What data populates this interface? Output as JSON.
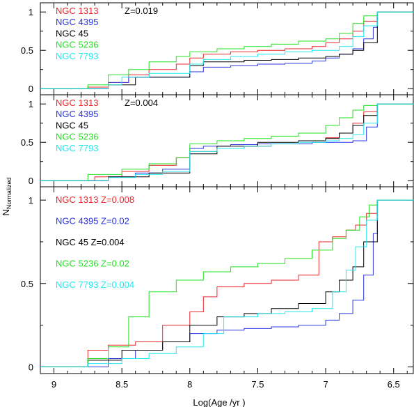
{
  "xlabel": "Log(Age /yr )",
  "ylabel_main": "N",
  "ylabel_sub": "Normalized",
  "xlim": [
    9.1,
    6.35
  ],
  "x_ticks": [
    "9",
    "8.5",
    "8",
    "7.5",
    "7",
    "6.5"
  ],
  "x_tick_values": [
    9,
    8.5,
    8,
    7.5,
    7,
    6.5
  ],
  "panels": [
    {
      "metallicity_label": "Z=0.019",
      "y_ticks": [
        "0",
        "0.5",
        "1"
      ],
      "legend": [
        "NGC 1313",
        "NGC 4395",
        "NGC 45",
        "NGC 5236",
        "NGC 7793"
      ]
    },
    {
      "metallicity_label": "Z=0.004",
      "y_ticks": [
        "0",
        "0.5",
        "1"
      ],
      "legend": [
        "NGC 1313",
        "NGC 4395",
        "NGC 45",
        "NGC 5236",
        "NGC 7793"
      ]
    },
    {
      "metallicity_label": "",
      "y_ticks": [
        "0",
        "0.5",
        "1"
      ],
      "legend": [
        "NGC 1313 Z=0.008",
        "NGC 4395 Z=0.02",
        "NGC 45 Z=0.004",
        "NGC 5236 Z=0.02",
        "NGC 7793 Z=0.004"
      ]
    }
  ],
  "colors": {
    "NGC 1313": "#e8262a",
    "NGC 4395": "#2a35e0",
    "NGC 45": "#000000",
    "NGC 5236": "#22e022",
    "NGC 7793": "#22e8f0"
  },
  "chart_data": [
    {
      "type": "line",
      "step": true,
      "panel": "top",
      "title": "Z=0.019",
      "ylim": [
        -0.08,
        1.12
      ],
      "series": [
        {
          "name": "NGC 1313",
          "x": [
            9.1,
            8.75,
            8.6,
            8.45,
            8.3,
            8.1,
            8.0,
            7.9,
            7.7,
            7.5,
            7.3,
            7.1,
            7.0,
            6.9,
            6.8,
            6.72,
            6.62,
            6.35
          ],
          "y": [
            0.0,
            0.02,
            0.08,
            0.18,
            0.25,
            0.32,
            0.4,
            0.45,
            0.48,
            0.5,
            0.52,
            0.55,
            0.6,
            0.65,
            0.75,
            0.88,
            1.0,
            1.0
          ]
        },
        {
          "name": "NGC 4395",
          "x": [
            9.1,
            8.6,
            8.45,
            8.0,
            7.9,
            7.7,
            7.5,
            7.3,
            7.1,
            7.0,
            6.9,
            6.8,
            6.72,
            6.65,
            6.62,
            6.35
          ],
          "y": [
            0.0,
            0.08,
            0.15,
            0.22,
            0.28,
            0.3,
            0.32,
            0.33,
            0.36,
            0.4,
            0.45,
            0.52,
            0.65,
            0.8,
            1.0,
            1.0
          ]
        },
        {
          "name": "NGC 45",
          "x": [
            9.1,
            8.6,
            8.4,
            8.0,
            7.9,
            7.6,
            7.4,
            7.2,
            7.0,
            6.9,
            6.8,
            6.72,
            6.62,
            6.35
          ],
          "y": [
            0.0,
            0.05,
            0.15,
            0.3,
            0.35,
            0.37,
            0.38,
            0.4,
            0.42,
            0.45,
            0.5,
            0.6,
            1.0,
            1.0
          ]
        },
        {
          "name": "NGC 5236",
          "x": [
            9.1,
            8.75,
            8.6,
            8.45,
            8.3,
            8.1,
            8.0,
            7.8,
            7.6,
            7.4,
            7.2,
            7.0,
            6.9,
            6.8,
            6.72,
            6.62,
            6.35
          ],
          "y": [
            0.0,
            0.05,
            0.18,
            0.25,
            0.35,
            0.42,
            0.48,
            0.52,
            0.55,
            0.58,
            0.62,
            0.65,
            0.72,
            0.85,
            0.95,
            1.0,
            1.0
          ]
        },
        {
          "name": "NGC 7793",
          "x": [
            9.1,
            8.6,
            8.5,
            8.3,
            8.0,
            7.9,
            7.7,
            7.5,
            7.3,
            7.1,
            6.9,
            6.8,
            6.72,
            6.62,
            6.35
          ],
          "y": [
            0.0,
            0.05,
            0.15,
            0.2,
            0.32,
            0.38,
            0.42,
            0.45,
            0.48,
            0.5,
            0.55,
            0.68,
            0.82,
            1.0,
            1.0
          ]
        }
      ]
    },
    {
      "type": "line",
      "step": true,
      "panel": "middle",
      "title": "Z=0.004",
      "ylim": [
        -0.08,
        1.12
      ],
      "series": [
        {
          "name": "NGC 1313",
          "x": [
            9.1,
            8.7,
            8.5,
            8.3,
            8.1,
            8.0,
            7.8,
            7.6,
            7.4,
            7.2,
            7.0,
            6.9,
            6.8,
            6.72,
            6.62,
            6.35
          ],
          "y": [
            0.0,
            0.05,
            0.12,
            0.2,
            0.3,
            0.38,
            0.42,
            0.45,
            0.48,
            0.52,
            0.56,
            0.62,
            0.75,
            0.9,
            1.0,
            1.0
          ]
        },
        {
          "name": "NGC 4395",
          "x": [
            9.1,
            8.6,
            8.4,
            8.2,
            8.0,
            7.9,
            7.7,
            7.5,
            7.3,
            7.1,
            6.9,
            6.8,
            6.7,
            6.62,
            6.35
          ],
          "y": [
            0.0,
            0.05,
            0.1,
            0.15,
            0.42,
            0.45,
            0.47,
            0.48,
            0.48,
            0.5,
            0.5,
            0.52,
            0.7,
            1.0,
            1.0
          ]
        },
        {
          "name": "NGC 45",
          "x": [
            9.1,
            8.6,
            8.3,
            8.0,
            7.8,
            7.5,
            7.2,
            7.0,
            6.9,
            6.8,
            6.72,
            6.62,
            6.35
          ],
          "y": [
            0.0,
            0.05,
            0.1,
            0.35,
            0.45,
            0.5,
            0.52,
            0.55,
            0.62,
            0.72,
            0.85,
            1.0,
            1.0
          ]
        },
        {
          "name": "NGC 5236",
          "x": [
            9.1,
            8.75,
            8.5,
            8.3,
            8.1,
            8.0,
            7.8,
            7.6,
            7.4,
            7.2,
            7.0,
            6.9,
            6.8,
            6.72,
            6.62,
            6.35
          ],
          "y": [
            0.0,
            0.08,
            0.15,
            0.22,
            0.3,
            0.48,
            0.52,
            0.55,
            0.58,
            0.62,
            0.72,
            0.82,
            0.92,
            0.98,
            1.0,
            1.0
          ]
        },
        {
          "name": "NGC 7793",
          "x": [
            9.1,
            8.6,
            8.4,
            8.2,
            8.0,
            7.8,
            7.6,
            7.4,
            7.2,
            7.0,
            6.9,
            6.8,
            6.72,
            6.62,
            6.35
          ],
          "y": [
            0.0,
            0.04,
            0.08,
            0.12,
            0.38,
            0.42,
            0.45,
            0.48,
            0.5,
            0.52,
            0.55,
            0.6,
            0.75,
            1.0,
            1.0
          ]
        }
      ]
    },
    {
      "type": "line",
      "step": true,
      "panel": "bottom",
      "title": "",
      "ylim": [
        -0.04,
        1.08
      ],
      "series": [
        {
          "name": "NGC 1313 Z=0.008",
          "x": [
            9.1,
            8.75,
            8.6,
            8.4,
            8.2,
            8.0,
            7.9,
            7.8,
            7.6,
            7.4,
            7.2,
            7.05,
            6.95,
            6.85,
            6.78,
            6.7,
            6.62,
            6.35
          ],
          "y": [
            0.0,
            0.1,
            0.13,
            0.15,
            0.25,
            0.33,
            0.42,
            0.48,
            0.5,
            0.52,
            0.55,
            0.75,
            0.78,
            0.82,
            0.85,
            0.92,
            1.0,
            1.0
          ]
        },
        {
          "name": "NGC 4395 Z=0.02",
          "x": [
            9.1,
            8.6,
            8.4,
            8.2,
            8.0,
            7.8,
            7.6,
            7.4,
            7.2,
            7.0,
            6.9,
            6.8,
            6.72,
            6.65,
            6.62,
            6.35
          ],
          "y": [
            0.0,
            0.05,
            0.1,
            0.15,
            0.2,
            0.22,
            0.23,
            0.24,
            0.25,
            0.28,
            0.32,
            0.4,
            0.55,
            0.8,
            1.0,
            1.0
          ]
        },
        {
          "name": "NGC 45 Z=0.004",
          "x": [
            9.1,
            8.75,
            8.5,
            8.2,
            8.0,
            7.8,
            7.6,
            7.4,
            7.2,
            7.0,
            6.9,
            6.8,
            6.72,
            6.62,
            6.35
          ],
          "y": [
            0.0,
            0.04,
            0.1,
            0.15,
            0.25,
            0.3,
            0.32,
            0.35,
            0.38,
            0.45,
            0.52,
            0.6,
            0.75,
            1.0,
            1.0
          ]
        },
        {
          "name": "NGC 5236 Z=0.02",
          "x": [
            9.1,
            8.75,
            8.6,
            8.45,
            8.3,
            8.1,
            7.9,
            7.7,
            7.5,
            7.3,
            7.1,
            6.95,
            6.85,
            6.75,
            6.68,
            6.62,
            6.35
          ],
          "y": [
            0.0,
            0.05,
            0.12,
            0.3,
            0.45,
            0.52,
            0.57,
            0.6,
            0.62,
            0.65,
            0.7,
            0.77,
            0.82,
            0.9,
            0.97,
            1.0,
            1.0
          ]
        },
        {
          "name": "NGC 7793 Z=0.004",
          "x": [
            9.1,
            8.75,
            8.5,
            8.3,
            8.1,
            7.9,
            7.75,
            7.5,
            7.3,
            7.1,
            6.95,
            6.85,
            6.78,
            6.7,
            6.62,
            6.35
          ],
          "y": [
            0.0,
            0.02,
            0.05,
            0.08,
            0.12,
            0.2,
            0.3,
            0.32,
            0.33,
            0.35,
            0.45,
            0.58,
            0.72,
            0.88,
            1.0,
            1.0
          ]
        }
      ]
    }
  ]
}
